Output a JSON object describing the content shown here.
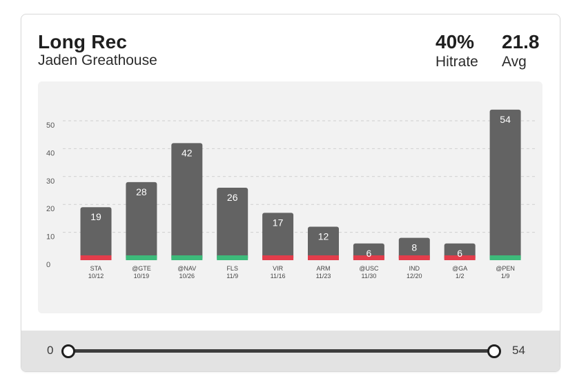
{
  "header": {
    "title": "Long Rec",
    "player": "Jaden Greathouse",
    "hitrate_value": "40%",
    "hitrate_label": "Hitrate",
    "avg_value": "21.8",
    "avg_label": "Avg"
  },
  "chart_data": {
    "type": "bar",
    "categories": [
      "STA",
      "@GTE",
      "@NAV",
      "FLS",
      "VIR",
      "ARM",
      "@USC",
      "IND",
      "@GA",
      "@PEN"
    ],
    "dates": [
      "10/12",
      "10/19",
      "10/26",
      "11/9",
      "11/16",
      "11/23",
      "11/30",
      "12/20",
      "1/2",
      "1/9"
    ],
    "values": [
      19,
      28,
      42,
      26,
      17,
      12,
      6,
      8,
      6,
      54
    ],
    "hit": [
      false,
      true,
      true,
      true,
      false,
      false,
      false,
      false,
      false,
      true
    ],
    "ylim": [
      0,
      50
    ],
    "yticks": [
      0,
      10,
      20,
      30,
      40,
      50
    ],
    "grid": true,
    "colors": {
      "bar": "#636363",
      "hit": "#3dba7a",
      "miss": "#e23d4b",
      "grid": "#cfcfcf",
      "background": "#f2f2f2"
    }
  },
  "slider": {
    "min_label": "0",
    "max_label": "54",
    "min_value": 0,
    "max_value": 54
  }
}
